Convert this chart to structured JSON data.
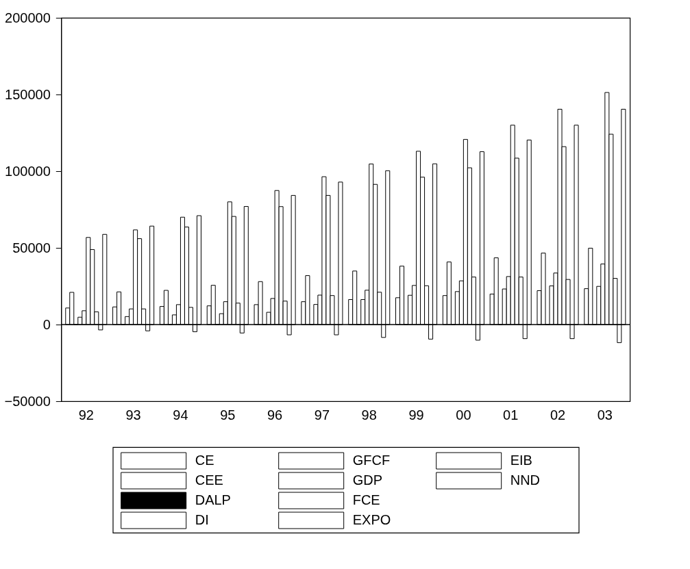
{
  "chart_data": {
    "type": "bar",
    "categories": [
      "92",
      "93",
      "94",
      "95",
      "96",
      "97",
      "98",
      "99",
      "00",
      "01",
      "02",
      "03"
    ],
    "series": [
      {
        "name": "CE",
        "color": "#ffffff",
        "values": [
          10800,
          11500,
          11800,
          12200,
          13000,
          14900,
          16300,
          17500,
          18900,
          19900,
          22100,
          23400
        ]
      },
      {
        "name": "CEE",
        "color": "#ffffff",
        "values": [
          21000,
          21300,
          22300,
          25600,
          28000,
          31900,
          34900,
          38100,
          40800,
          43500,
          46600,
          49800
        ]
      },
      {
        "name": "DALP",
        "color": "#000000",
        "values": [
          0,
          0,
          0,
          0,
          0,
          0,
          0,
          0,
          0,
          0,
          0,
          0
        ]
      },
      {
        "name": "DI",
        "color": "#ffffff",
        "values": [
          4800,
          5200,
          6300,
          7100,
          8000,
          13100,
          16300,
          19100,
          21500,
          23200,
          25200,
          24900
        ]
      },
      {
        "name": "GFCF",
        "color": "#ffffff",
        "values": [
          9000,
          10200,
          13000,
          14900,
          17000,
          19200,
          22400,
          25500,
          28500,
          31300,
          33600,
          39500
        ]
      },
      {
        "name": "GDP",
        "color": "#ffffff",
        "values": [
          56800,
          61700,
          70000,
          80000,
          87400,
          96400,
          104700,
          113000,
          120700,
          130000,
          140400,
          151300
        ]
      },
      {
        "name": "FCE",
        "color": "#ffffff",
        "values": [
          48900,
          56000,
          63600,
          70500,
          76900,
          84200,
          91400,
          96100,
          102200,
          108500,
          116000,
          124100
        ]
      },
      {
        "name": "EXPO",
        "color": "#ffffff",
        "values": [
          8300,
          10200,
          11200,
          14000,
          15300,
          18900,
          21100,
          25300,
          31000,
          31000,
          29400,
          30100
        ]
      },
      {
        "name": "EIB",
        "color": "#ffffff",
        "values": [
          -3500,
          -4100,
          -4700,
          -5500,
          -6700,
          -6700,
          -8400,
          -9500,
          -10200,
          -9200,
          -9200,
          -11800
        ]
      },
      {
        "name": "NND",
        "color": "#ffffff",
        "values": [
          58800,
          64200,
          71000,
          77000,
          84200,
          92900,
          100300,
          104800,
          112700,
          120300,
          130000,
          140400
        ]
      }
    ],
    "ylim": [
      -50000,
      200000
    ],
    "yticks": [
      -50000,
      0,
      50000,
      100000,
      150000,
      200000
    ],
    "ref_lines": [
      {
        "axis": "y",
        "value": 0
      }
    ],
    "grid": false,
    "legend": "bottom"
  }
}
